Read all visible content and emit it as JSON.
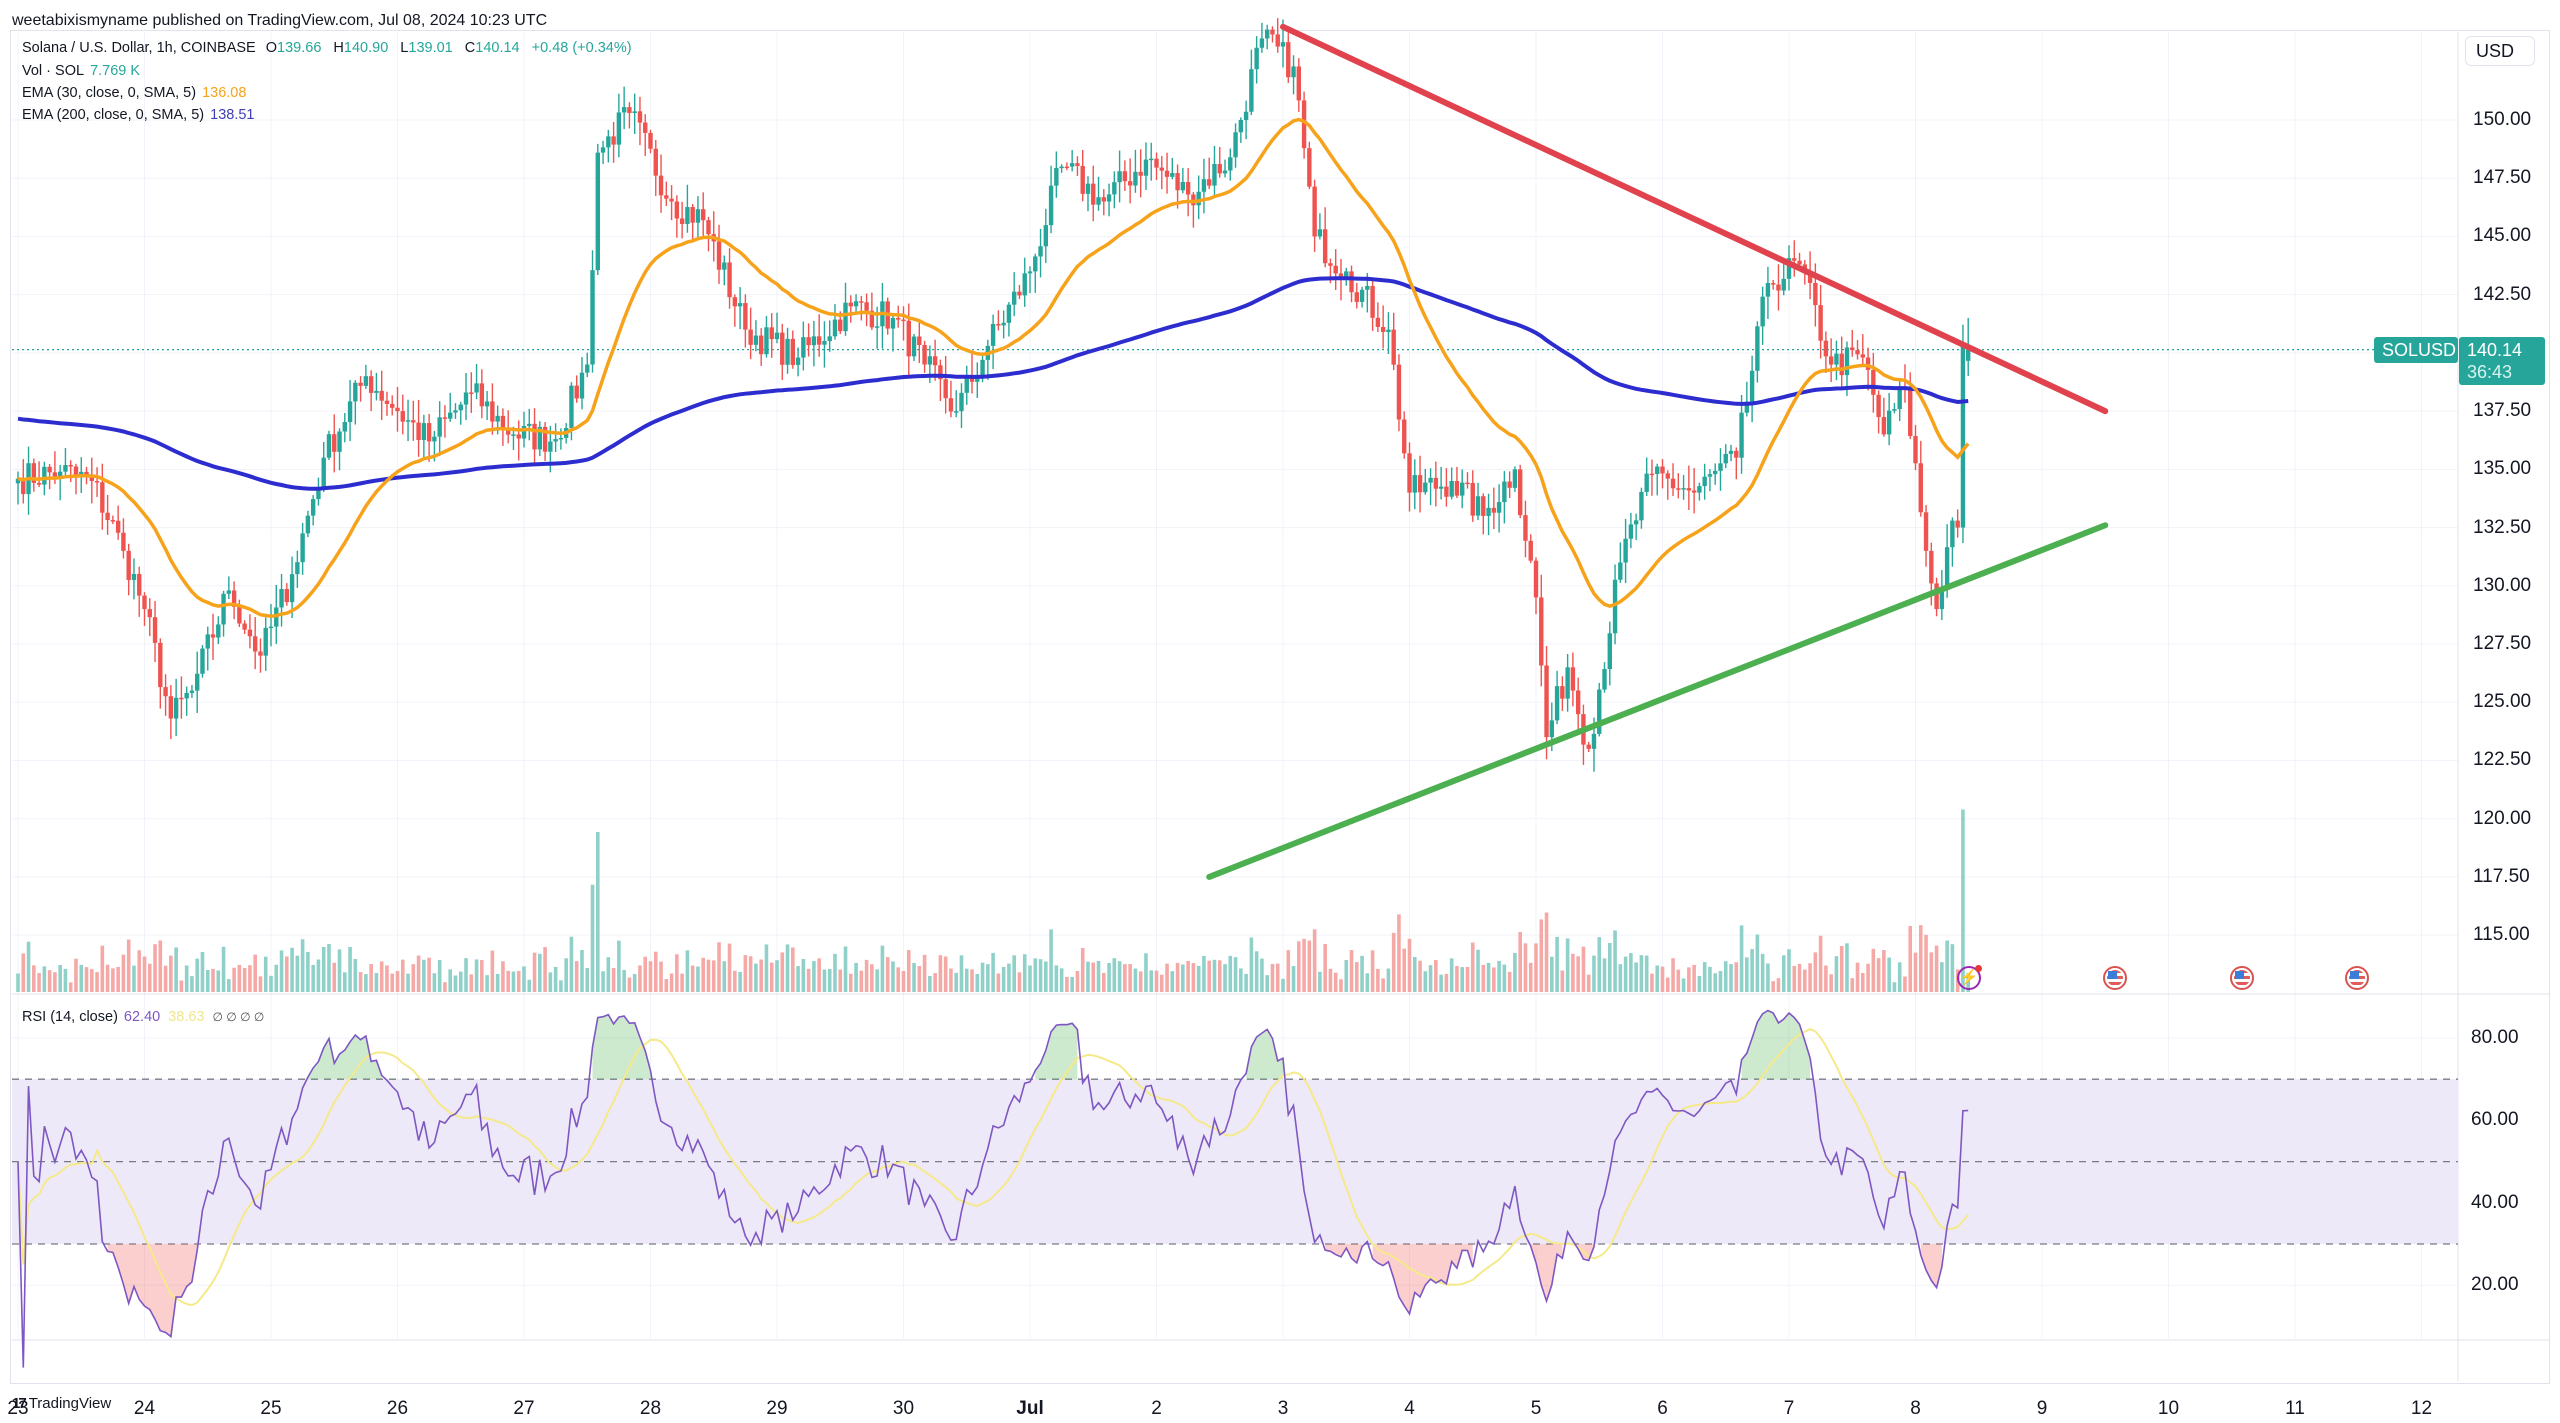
{
  "publisher": "weetabixismyname published on TradingView.com, Jul 08, 2024 10:23 UTC",
  "legend": {
    "symbol": "Solana / U.S. Dollar, 1h, COINBASE",
    "o_label": "O",
    "o": "139.66",
    "h_label": "H",
    "h": "140.90",
    "l_label": "L",
    "l": "139.01",
    "c_label": "C",
    "c": "140.14",
    "change": "+0.48 (+0.34%)",
    "vol_label": "Vol · SOL",
    "vol": "7.769 K",
    "ema30_label": "EMA (30, close, 0, SMA, 5)",
    "ema30": "136.08",
    "ema200_label": "EMA (200, close, 0, SMA, 5)",
    "ema200": "138.51",
    "rsi_label": "RSI (14, close)",
    "rsi": "62.40",
    "rsi_ma": "38.63",
    "rsi_extra": "∅ ∅ ∅ ∅"
  },
  "price_axis": {
    "currency_button": "USD",
    "ticks": [
      "150.00",
      "147.50",
      "145.00",
      "142.50",
      "137.50",
      "135.00",
      "132.50",
      "130.00",
      "127.50",
      "125.00",
      "122.50",
      "120.00",
      "117.50",
      "115.00"
    ],
    "symbol_tag": "SOLUSD",
    "last_price": "140.14",
    "countdown": "36:43"
  },
  "rsi_axis": {
    "ticks": [
      "80.00",
      "60.00",
      "40.00",
      "20.00"
    ]
  },
  "time_axis": {
    "labels": [
      "23",
      "24",
      "25",
      "26",
      "27",
      "28",
      "29",
      "30",
      "Jul",
      "2",
      "3",
      "4",
      "5",
      "6",
      "7",
      "8",
      "9",
      "10",
      "11",
      "12"
    ]
  },
  "branding": "TradingView",
  "colors": {
    "up": "#26a69a",
    "down": "#ef5350",
    "vol_up": "#8fd1c9",
    "vol_down": "#f5a9a7",
    "ema30": "#f7a21b",
    "ema200": "#2d2dcf",
    "resistance": "#e0434d",
    "support": "#4caf50",
    "rsi": "#7e57c2",
    "rsi_ma": "#f5e98a",
    "rsi_band": "#ede9f8"
  },
  "chart_data": {
    "type": "candlestick",
    "title": "Solana / U.S. Dollar, 1h, COINBASE",
    "ylabel": "USD",
    "ylim": [
      112.5,
      154
    ],
    "x_start": "2024-06-23",
    "x_end": "2024-07-12",
    "close_waypoints": [
      {
        "t": "Jun 23 00:00",
        "close": 134.6
      },
      {
        "t": "Jun 23 08:00",
        "close": 134.9
      },
      {
        "t": "Jun 23 14:00",
        "close": 134.5
      },
      {
        "t": "Jun 23 20:00",
        "close": 131.5
      },
      {
        "t": "Jun 24 00:00",
        "close": 129.0
      },
      {
        "t": "Jun 24 05:00",
        "close": 124.3
      },
      {
        "t": "Jun 24 09:00",
        "close": 125.5
      },
      {
        "t": "Jun 24 16:00",
        "close": 129.8
      },
      {
        "t": "Jun 24 22:00",
        "close": 127.0
      },
      {
        "t": "Jun 25 04:00",
        "close": 130.5
      },
      {
        "t": "Jun 25 10:00",
        "close": 135.5
      },
      {
        "t": "Jun 25 18:00",
        "close": 139.0
      },
      {
        "t": "Jun 26 00:00",
        "close": 137.5
      },
      {
        "t": "Jun 26 06:00",
        "close": 136.2
      },
      {
        "t": "Jun 26 14:00",
        "close": 138.3
      },
      {
        "t": "Jun 26 22:00",
        "close": 136.5
      },
      {
        "t": "Jun 27 06:00",
        "close": 136.3
      },
      {
        "t": "Jun 27 12:00",
        "close": 139.5
      },
      {
        "t": "Jun 27 14:00",
        "close": 148.6
      },
      {
        "t": "Jun 27 20:00",
        "close": 150.3
      },
      {
        "t": "Jun 28 04:00",
        "close": 146.5
      },
      {
        "t": "Jun 28 10:00",
        "close": 145.7
      },
      {
        "t": "Jun 28 18:00",
        "close": 141.0
      },
      {
        "t": "Jun 29 04:00",
        "close": 139.8
      },
      {
        "t": "Jun 29 14:00",
        "close": 142.0
      },
      {
        "t": "Jun 29 22:00",
        "close": 141.5
      },
      {
        "t": "Jun 30 04:00",
        "close": 139.5
      },
      {
        "t": "Jun 30 10:00",
        "close": 137.5
      },
      {
        "t": "Jun 30 16:00",
        "close": 140.3
      },
      {
        "t": "Jul 01 00:00",
        "close": 143.5
      },
      {
        "t": "Jul 01 06:00",
        "close": 148.0
      },
      {
        "t": "Jul 01 14:00",
        "close": 146.5
      },
      {
        "t": "Jul 01 22:00",
        "close": 148.3
      },
      {
        "t": "Jul 02 06:00",
        "close": 146.8
      },
      {
        "t": "Jul 02 14:00",
        "close": 148.4
      },
      {
        "t": "Jul 02 20:00",
        "close": 153.5
      },
      {
        "t": "Jul 03 02:00",
        "close": 152.3
      },
      {
        "t": "Jul 03 06:00",
        "close": 145.0
      },
      {
        "t": "Jul 03 12:00",
        "close": 143.5
      },
      {
        "t": "Jul 03 20:00",
        "close": 141.0
      },
      {
        "t": "Jul 04 00:00",
        "close": 134.0
      },
      {
        "t": "Jul 04 08:00",
        "close": 134.5
      },
      {
        "t": "Jul 04 14:00",
        "close": 133.0
      },
      {
        "t": "Jul 04 20:00",
        "close": 135.0
      },
      {
        "t": "Jul 05 00:00",
        "close": 129.5
      },
      {
        "t": "Jul 05 02:00",
        "close": 123.5
      },
      {
        "t": "Jul 05 06:00",
        "close": 126.5
      },
      {
        "t": "Jul 05 10:00",
        "close": 123.0
      },
      {
        "t": "Jul 05 16:00",
        "close": 131.0
      },
      {
        "t": "Jul 05 22:00",
        "close": 134.8
      },
      {
        "t": "Jul 06 06:00",
        "close": 134.0
      },
      {
        "t": "Jul 06 14:00",
        "close": 135.5
      },
      {
        "t": "Jul 06 20:00",
        "close": 143.0
      },
      {
        "t": "Jul 07 02:00",
        "close": 143.8
      },
      {
        "t": "Jul 07 08:00",
        "close": 139.5
      },
      {
        "t": "Jul 07 14:00",
        "close": 139.8
      },
      {
        "t": "Jul 07 18:00",
        "close": 136.5
      },
      {
        "t": "Jul 07 22:00",
        "close": 138.5
      },
      {
        "t": "Jul 08 02:00",
        "close": 131.5
      },
      {
        "t": "Jul 08 04:00",
        "close": 129.0
      },
      {
        "t": "Jul 08 07:00",
        "close": 132.8
      },
      {
        "t": "Jul 08 08:00",
        "close": 132.5
      },
      {
        "t": "Jul 08 09:00",
        "close": 140.3
      },
      {
        "t": "Jul 08 10:00",
        "close": 140.14
      }
    ],
    "ema30_last": 136.08,
    "ema200_last": 138.51,
    "rsi_last": 62.4,
    "rsi_ma_last": 38.63,
    "rsi_bands": [
      70,
      50,
      30
    ],
    "rsi_ylim": [
      10,
      90
    ],
    "trendlines": [
      {
        "name": "resistance",
        "from": {
          "t": "Jul 03 00:00",
          "price": 154.0
        },
        "to": {
          "t": "Jul 09 12:00",
          "price": 137.5
        }
      },
      {
        "name": "support",
        "from": {
          "t": "Jul 02 10:00",
          "price": 117.5
        },
        "to": {
          "t": "Jul 09 12:00",
          "price": 132.6
        }
      }
    ],
    "events": [
      {
        "type": "lightning",
        "t": "Jul 08 10:00"
      },
      {
        "type": "us-economic",
        "t": "Jul 09 12:00"
      },
      {
        "type": "us-economic",
        "t": "Jul 10 12:00"
      },
      {
        "type": "us-economic",
        "t": "Jul 11 10:00"
      }
    ]
  }
}
